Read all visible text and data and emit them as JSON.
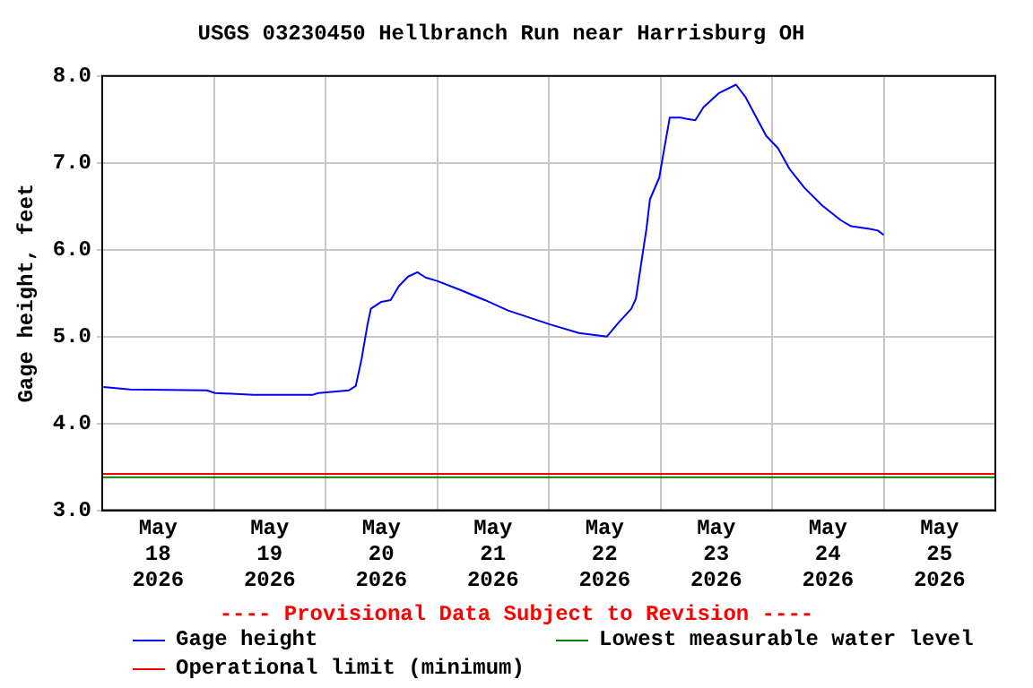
{
  "chart_data": {
    "type": "line",
    "title": "USGS 03230450 Hellbranch Run near Harrisburg OH",
    "ylabel": "Gage height, feet",
    "x": [
      "2026-05-18T00:15",
      "2026-05-18T06:00",
      "2026-05-18T22:30",
      "2026-05-19T00:15",
      "2026-05-19T08:30",
      "2026-05-19T21:15",
      "2026-05-19T22:30",
      "2026-05-20T05:00",
      "2026-05-20T06:30",
      "2026-05-20T07:45",
      "2026-05-20T09:00",
      "2026-05-20T09:45",
      "2026-05-20T12:00",
      "2026-05-20T14:00",
      "2026-05-20T15:45",
      "2026-05-20T17:45",
      "2026-05-20T19:45",
      "2026-05-20T21:30",
      "2026-05-21T00:00",
      "2026-05-21T05:15",
      "2026-05-21T10:15",
      "2026-05-21T15:15",
      "2026-05-22T00:15",
      "2026-05-22T06:30",
      "2026-05-22T12:30",
      "2026-05-22T15:00",
      "2026-05-22T17:45",
      "2026-05-22T18:45",
      "2026-05-22T20:00",
      "2026-05-22T21:00",
      "2026-05-22T21:45",
      "2026-05-22T23:45",
      "2026-05-23T00:45",
      "2026-05-23T02:00",
      "2026-05-23T04:15",
      "2026-05-23T07:30",
      "2026-05-23T09:15",
      "2026-05-23T12:30",
      "2026-05-23T16:15",
      "2026-05-23T18:15",
      "2026-05-23T20:15",
      "2026-05-23T22:45",
      "2026-05-24T01:15",
      "2026-05-24T03:45",
      "2026-05-24T07:00",
      "2026-05-24T10:45",
      "2026-05-24T14:45",
      "2026-05-24T17:00",
      "2026-05-24T21:00",
      "2026-05-24T22:45",
      "2026-05-25T00:00"
    ],
    "series": [
      {
        "name": "Gage height",
        "color": "#0000ff",
        "values": [
          4.42,
          4.39,
          4.38,
          4.35,
          4.33,
          4.33,
          4.35,
          4.38,
          4.43,
          4.74,
          5.13,
          5.32,
          5.4,
          5.42,
          5.58,
          5.69,
          5.74,
          5.68,
          5.64,
          5.53,
          5.42,
          5.3,
          5.14,
          5.04,
          5.0,
          5.16,
          5.32,
          5.44,
          5.89,
          6.24,
          6.58,
          6.83,
          7.14,
          7.52,
          7.52,
          7.49,
          7.64,
          7.8,
          7.9,
          7.76,
          7.56,
          7.31,
          7.17,
          6.93,
          6.71,
          6.51,
          6.34,
          6.27,
          6.24,
          6.22,
          6.17
        ]
      }
    ],
    "ref_lines": [
      {
        "axis": "y",
        "value": 3.38,
        "label": "Lowest measurable water level",
        "color": "#008000"
      },
      {
        "axis": "y",
        "value": 3.42,
        "label": "Operational limit (minimum)",
        "color": "#ff0000"
      }
    ],
    "annotations": [
      "---- Provisional Data Subject to Revision ----"
    ],
    "xlim": [
      "2026-05-18",
      "2026-05-26"
    ],
    "xticks": [
      {
        "value": "2026-05-18T12:00",
        "label": "May\n18\n2026"
      },
      {
        "value": "2026-05-19",
        "label": null
      },
      {
        "value": "2026-05-19T12:00",
        "label": "May\n19\n2026"
      },
      {
        "value": "2026-05-20",
        "label": null
      },
      {
        "value": "2026-05-20T12:00",
        "label": "May\n20\n2026"
      },
      {
        "value": "2026-05-21",
        "label": null
      },
      {
        "value": "2026-05-21T12:00",
        "label": "May\n21\n2026"
      },
      {
        "value": "2026-05-22",
        "label": null
      },
      {
        "value": "2026-05-22T12:00",
        "label": "May\n22\n2026"
      },
      {
        "value": "2026-05-23",
        "label": null
      },
      {
        "value": "2026-05-23T12:00",
        "label": "May\n23\n2026"
      },
      {
        "value": "2026-05-24",
        "label": null
      },
      {
        "value": "2026-05-24T12:00",
        "label": "May\n24\n2026"
      },
      {
        "value": "2026-05-25",
        "label": null
      },
      {
        "value": "2026-05-25T12:00",
        "label": "May\n25\n2026"
      }
    ],
    "ylim": [
      3.0,
      8.0
    ],
    "yticks": [
      {
        "value": 3,
        "label": "3.0"
      },
      {
        "value": 4,
        "label": "4.0"
      },
      {
        "value": 5,
        "label": "5.0"
      },
      {
        "value": 6,
        "label": "6.0"
      },
      {
        "value": 7,
        "label": "7.0"
      },
      {
        "value": 8,
        "label": "8.0"
      }
    ],
    "grid": true,
    "legend": "bottom",
    "marker": "none",
    "line_style": "solid"
  }
}
